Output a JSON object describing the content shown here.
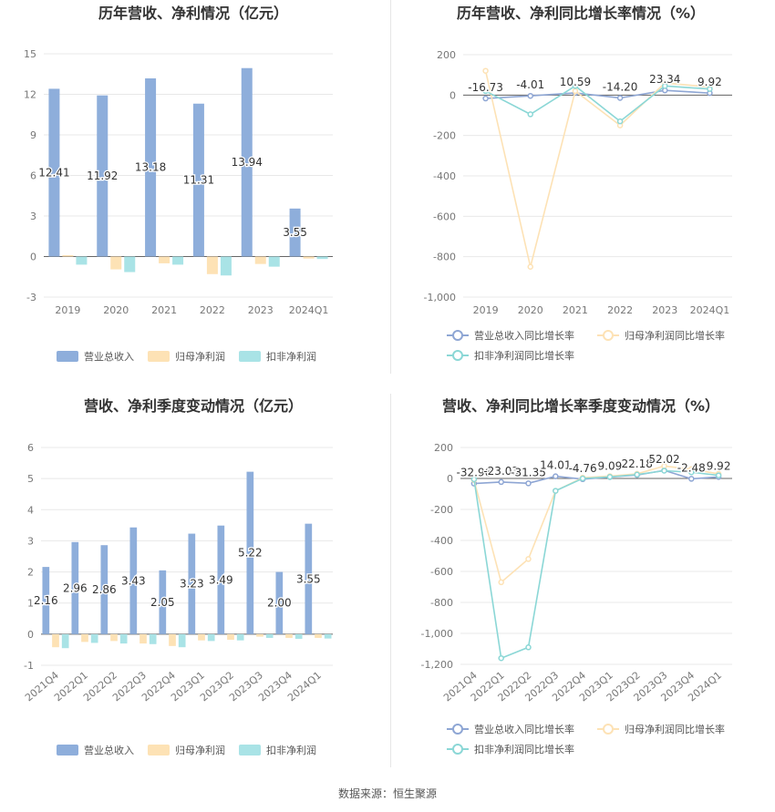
{
  "colors": {
    "revenue": "#8eaedb",
    "net_profit": "#fde2b5",
    "non_gaap": "#a9e3e6",
    "rev_line": "#8ea6d4",
    "np_line": "#fde2b5",
    "ng_line": "#8bd7d6",
    "grid": "#e8e8e8",
    "axis_text": "#777777",
    "title": "#333333"
  },
  "source": "数据来源：恒生聚源",
  "chart_data": [
    {
      "type": "bar",
      "title": "历年营收、净利情况（亿元）",
      "categories": [
        "2019",
        "2020",
        "2021",
        "2022",
        "2023",
        "2024Q1"
      ],
      "ylim": [
        -3,
        15
      ],
      "yticks": [
        "15",
        "12",
        "9",
        "6",
        "3",
        "0",
        "-3"
      ],
      "series": [
        {
          "name": "营业总收入",
          "values": [
            12.41,
            11.92,
            13.18,
            11.31,
            13.94,
            3.55
          ],
          "labels": [
            "12.41",
            "11.92",
            "13.18",
            "11.31",
            "13.94",
            "3.55"
          ]
        },
        {
          "name": "归母净利润",
          "values": [
            0.1,
            -0.95,
            -0.5,
            -1.3,
            -0.55,
            -0.15
          ]
        },
        {
          "name": "扣非净利润",
          "values": [
            -0.6,
            -1.15,
            -0.6,
            -1.4,
            -0.75,
            -0.18
          ]
        }
      ],
      "legend": "bottom"
    },
    {
      "type": "line",
      "title": "历年营收、净利同比增长率情况（%）",
      "categories": [
        "2019",
        "2020",
        "2021",
        "2022",
        "2023",
        "2024Q1"
      ],
      "ylim": [
        -1000,
        200
      ],
      "yticks": [
        "200",
        "0",
        "-200",
        "-400",
        "-600",
        "-800",
        "-1,000"
      ],
      "series": [
        {
          "name": "营业总收入同比增长率",
          "values": [
            -16.73,
            -4.01,
            10.59,
            -14.2,
            23.34,
            9.92
          ],
          "labels": [
            "-16.73",
            "-4.01",
            "10.59",
            "-14.20",
            "23.34",
            "9.92"
          ]
        },
        {
          "name": "归母净利润同比增长率",
          "values": [
            120,
            -850,
            20,
            -150,
            60,
            40
          ]
        },
        {
          "name": "扣非净利润同比增长率",
          "values": [
            20,
            -95,
            45,
            -130,
            45,
            30
          ]
        }
      ],
      "legend": "bottom"
    },
    {
      "type": "bar",
      "title": "营收、净利季度变动情况（亿元）",
      "categories": [
        "2021Q4",
        "2022Q1",
        "2022Q2",
        "2022Q3",
        "2022Q4",
        "2023Q1",
        "2023Q2",
        "2023Q3",
        "2023Q4",
        "2024Q1"
      ],
      "ylim": [
        -1,
        6
      ],
      "yticks": [
        "6",
        "5",
        "4",
        "3",
        "2",
        "1",
        "0",
        "-1"
      ],
      "series": [
        {
          "name": "营业总收入",
          "values": [
            2.16,
            2.96,
            2.86,
            3.43,
            2.05,
            3.23,
            3.49,
            5.22,
            2.0,
            3.55
          ],
          "labels": [
            "2.16",
            "2.96",
            "2.86",
            "3.43",
            "2.05",
            "3.23",
            "3.49",
            "5.22",
            "2.00",
            "3.55"
          ]
        },
        {
          "name": "归母净利润",
          "values": [
            -0.42,
            -0.25,
            -0.22,
            -0.3,
            -0.38,
            -0.2,
            -0.18,
            -0.08,
            -0.12,
            -0.12
          ]
        },
        {
          "name": "扣非净利润",
          "values": [
            -0.45,
            -0.28,
            -0.3,
            -0.32,
            -0.42,
            -0.22,
            -0.2,
            -0.12,
            -0.15,
            -0.14
          ]
        }
      ],
      "legend": "bottom"
    },
    {
      "type": "line",
      "title": "营收、净利同比增长率季度变动情况（%）",
      "categories": [
        "2021Q4",
        "2022Q1",
        "2022Q2",
        "2022Q3",
        "2022Q4",
        "2023Q1",
        "2023Q2",
        "2023Q3",
        "2023Q4",
        "2024Q1"
      ],
      "ylim": [
        -1200,
        200
      ],
      "yticks": [
        "200",
        "0",
        "-200",
        "-400",
        "-600",
        "-800",
        "-1,000",
        "-1,200"
      ],
      "series": [
        {
          "name": "营业总收入同比增长率",
          "values": [
            -32.96,
            -23.03,
            -31.35,
            14.01,
            -4.76,
            9.09,
            22.18,
            52.02,
            -2.48,
            9.92
          ],
          "labels": [
            "-32.96",
            "-23.03",
            "-31.35",
            "14.01",
            "-4.76",
            "9.09",
            "22.18",
            "52.02",
            "-2.48",
            "9.92"
          ]
        },
        {
          "name": "归母净利润同比增长率",
          "values": [
            -10,
            -670,
            -520,
            -80,
            5,
            15,
            30,
            80,
            60,
            30
          ]
        },
        {
          "name": "扣非净利润同比增长率",
          "values": [
            -5,
            -1160,
            -1090,
            -80,
            0,
            10,
            25,
            50,
            40,
            20
          ]
        }
      ],
      "legend": "bottom"
    }
  ]
}
